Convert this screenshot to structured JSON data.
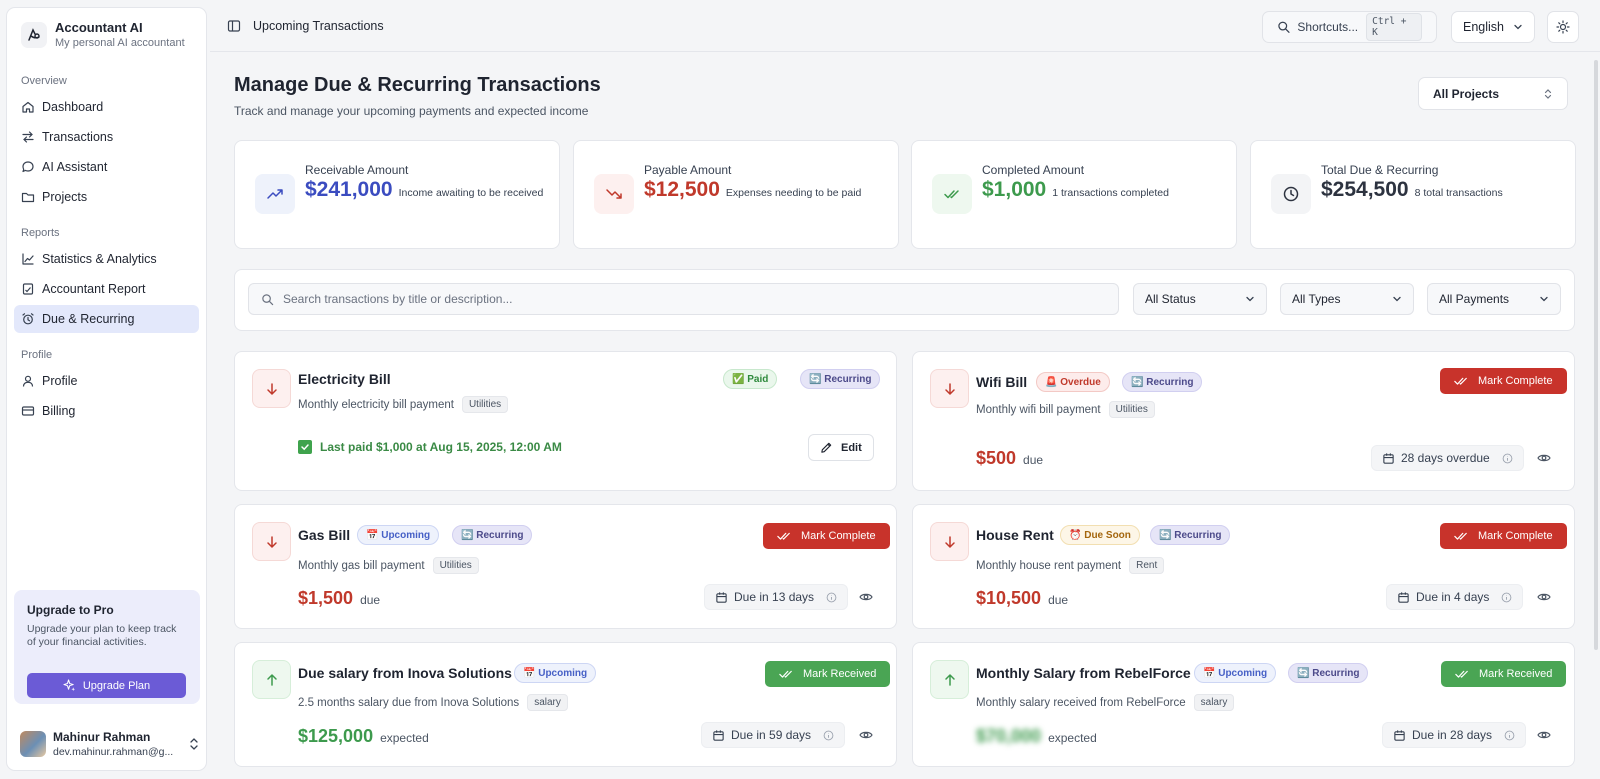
{
  "app": {
    "name": "Accountant AI",
    "tagline": "My personal AI accountant"
  },
  "sidebar": {
    "groups": [
      {
        "title": "Overview",
        "items": [
          {
            "label": "Dashboard",
            "icon": "home-icon"
          },
          {
            "label": "Transactions",
            "icon": "arrows-icon"
          },
          {
            "label": "AI Assistant",
            "icon": "chat-icon"
          },
          {
            "label": "Projects",
            "icon": "folder-icon"
          }
        ]
      },
      {
        "title": "Reports",
        "items": [
          {
            "label": "Statistics & Analytics",
            "icon": "chart-icon"
          },
          {
            "label": "Accountant Report",
            "icon": "report-icon"
          },
          {
            "label": "Due & Recurring",
            "icon": "alarm-icon",
            "active": true
          }
        ]
      },
      {
        "title": "Profile",
        "items": [
          {
            "label": "Profile",
            "icon": "user-icon"
          },
          {
            "label": "Billing",
            "icon": "card-icon"
          }
        ]
      }
    ],
    "upgrade": {
      "title": "Upgrade to Pro",
      "text": "Upgrade your plan to keep track of your financial activities.",
      "button": "Upgrade Plan"
    },
    "user": {
      "name": "Mahinur Rahman",
      "email": "dev.mahinur.rahman@g..."
    }
  },
  "topbar": {
    "breadcrumb": "Upcoming Transactions",
    "shortcuts": "Shortcuts...",
    "shortcut_key": "Ctrl + K",
    "language": "English"
  },
  "page": {
    "title": "Manage Due & Recurring Transactions",
    "subtitle": "Track and manage your upcoming payments and expected income",
    "project_filter": "All Projects"
  },
  "stats": [
    {
      "label": "Receivable Amount",
      "amount": "$241,000",
      "desc": "Income awaiting to be received",
      "color": "#3b4cc0"
    },
    {
      "label": "Payable Amount",
      "amount": "$12,500",
      "desc": "Expenses needing to be paid",
      "color": "#c0392b"
    },
    {
      "label": "Completed Amount",
      "amount": "$1,000",
      "desc": "1 transactions completed",
      "color": "#3d9a4d"
    },
    {
      "label": "Total Due & Recurring",
      "amount": "$254,500",
      "desc": "8 total transactions",
      "color": "#2d3340"
    }
  ],
  "filters": {
    "search_placeholder": "Search transactions by title or description...",
    "status": "All Status",
    "types": "All Types",
    "payments": "All Payments"
  },
  "transactions": [
    {
      "title": "Electricity Bill",
      "status": "✅ Paid",
      "recurring": "🔄 Recurring",
      "desc": "Monthly electricity bill payment",
      "tag": "Utilities",
      "last_paid": "Last paid $1,000 at Aug 15, 2025, 12:00 AM",
      "edit": "Edit"
    },
    {
      "title": "Wifi Bill",
      "status": "🚨 Overdue",
      "recurring": "🔄 Recurring",
      "desc": "Monthly wifi bill payment",
      "tag": "Utilities",
      "amount": "$500",
      "suffix": "due",
      "due": "28 days overdue",
      "action": "Mark Complete"
    },
    {
      "title": "Gas Bill",
      "status": "📅 Upcoming",
      "recurring": "🔄 Recurring",
      "desc": "Monthly gas bill payment",
      "tag": "Utilities",
      "amount": "$1,500",
      "suffix": "due",
      "due": "Due in 13 days",
      "action": "Mark Complete"
    },
    {
      "title": "House Rent",
      "status": "⏰ Due Soon",
      "recurring": "🔄 Recurring",
      "desc": "Monthly house rent payment",
      "tag": "Rent",
      "amount": "$10,500",
      "suffix": "due",
      "due": "Due in 4 days",
      "action": "Mark Complete"
    },
    {
      "title": "Due salary from Inova Solutions",
      "status": "📅 Upcoming",
      "desc": "2.5 months salary due from Inova Solutions",
      "tag": "salary",
      "amount": "$125,000",
      "suffix": "expected",
      "due": "Due in 59 days",
      "action": "Mark Received"
    },
    {
      "title": "Monthly Salary from RebelForce",
      "status": "📅 Upcoming",
      "recurring": "🔄 Recurring",
      "desc": "Monthly salary received from RebelForce",
      "tag": "salary",
      "amount": "$70,000",
      "suffix": "expected",
      "due": "Due in 28 days",
      "action": "Mark Received"
    }
  ]
}
